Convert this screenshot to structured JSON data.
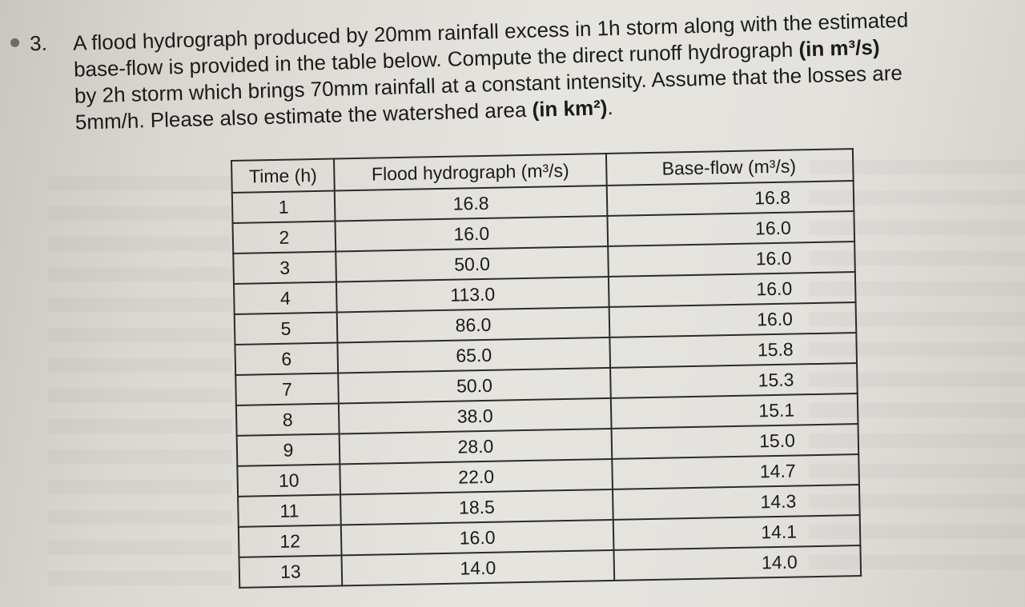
{
  "question": {
    "number": "3.",
    "lines": [
      "A flood hydrograph produced by 20mm rainfall excess in 1h storm along with the estimated",
      "base-flow is provided in the table below. Compute the direct runoff hydrograph",
      "by 2h storm which brings 70mm rainfall at a constant intensity. Assume that the losses are",
      "5mm/h. Please also estimate the watershed area"
    ],
    "bold_units_1": "(in m³/s)",
    "bold_units_2": "(in km²)",
    "end_period": "."
  },
  "table": {
    "headers": [
      "Time (h)",
      "Flood hydrograph (m³/s)",
      "Base-flow (m³/s)"
    ],
    "rows": [
      [
        "1",
        "16.8",
        "16.8"
      ],
      [
        "2",
        "16.0",
        "16.0"
      ],
      [
        "3",
        "50.0",
        "16.0"
      ],
      [
        "4",
        "113.0",
        "16.0"
      ],
      [
        "5",
        "86.0",
        "16.0"
      ],
      [
        "6",
        "65.0",
        "15.8"
      ],
      [
        "7",
        "50.0",
        "15.3"
      ],
      [
        "8",
        "38.0",
        "15.1"
      ],
      [
        "9",
        "28.0",
        "15.0"
      ],
      [
        "10",
        "22.0",
        "14.7"
      ],
      [
        "11",
        "18.5",
        "14.3"
      ],
      [
        "12",
        "16.0",
        "14.1"
      ],
      [
        "13",
        "14.0",
        "14.0"
      ]
    ]
  },
  "colors": {
    "paper": "#e4e2dd",
    "ink": "#1b1b1b",
    "show_through": "#6e6478"
  }
}
